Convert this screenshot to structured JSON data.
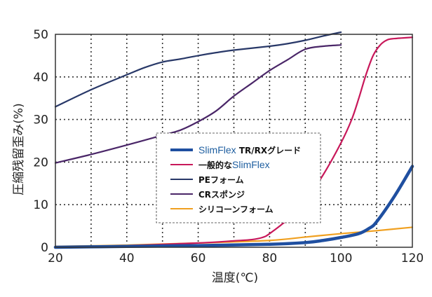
{
  "chart_data": {
    "type": "line",
    "xlabel": "温度(℃)",
    "ylabel": "圧縮残留歪み(%)",
    "xlim": [
      20,
      120
    ],
    "ylim": [
      0,
      50
    ],
    "x_ticks": [
      "20",
      "40",
      "60",
      "80",
      "100",
      "120"
    ],
    "y_ticks": [
      "0",
      "10",
      "20",
      "30",
      "40",
      "50"
    ],
    "grid": "dotted",
    "legend_position": "center",
    "series": [
      {
        "name_brand": "SlimFlex",
        "name_suffix": " TR/RXグレード",
        "color": "#1f4fa0",
        "x": [
          20,
          40,
          60,
          80,
          90,
          95,
          100,
          105,
          108,
          110,
          115,
          120
        ],
        "y": [
          0.0,
          0.2,
          0.4,
          0.7,
          1.1,
          1.6,
          2.3,
          3.2,
          4.5,
          6.0,
          12.0,
          19.0
        ]
      },
      {
        "name_text": "一般的な",
        "name_brand": "SlimFlex",
        "color": "#c8185a",
        "x": [
          20,
          40,
          60,
          70,
          75,
          78,
          80,
          85,
          90,
          95,
          100,
          103,
          105,
          107,
          109,
          111,
          113,
          115,
          120
        ],
        "y": [
          0.0,
          0.4,
          1.0,
          1.5,
          1.8,
          2.3,
          3.2,
          6.5,
          11.0,
          17.0,
          24.5,
          30.0,
          35.0,
          40.5,
          45.0,
          47.5,
          48.7,
          49.0,
          49.3
        ]
      },
      {
        "name": "PEフォーム",
        "color": "#283868",
        "x": [
          20,
          30,
          40,
          45,
          50,
          55,
          60,
          65,
          70,
          80,
          85,
          90,
          95,
          100
        ],
        "y": [
          33.0,
          37.0,
          40.5,
          42.2,
          43.5,
          44.2,
          45.0,
          45.7,
          46.3,
          47.2,
          47.8,
          48.6,
          49.6,
          50.5
        ]
      },
      {
        "name": "CRスポンジ",
        "color": "#4a2668",
        "x": [
          20,
          30,
          40,
          50,
          55,
          60,
          65,
          70,
          75,
          80,
          85,
          90,
          95,
          100
        ],
        "y": [
          19.8,
          21.8,
          24.0,
          26.3,
          27.5,
          29.5,
          32.0,
          35.5,
          38.5,
          41.5,
          44.0,
          46.5,
          47.2,
          47.5
        ]
      },
      {
        "name": "シリコーンフォーム",
        "color": "#f0a020",
        "x": [
          20,
          40,
          60,
          80,
          90,
          100,
          110,
          120
        ],
        "y": [
          0.2,
          0.5,
          1.0,
          1.6,
          2.4,
          3.2,
          3.9,
          4.7
        ]
      }
    ]
  }
}
